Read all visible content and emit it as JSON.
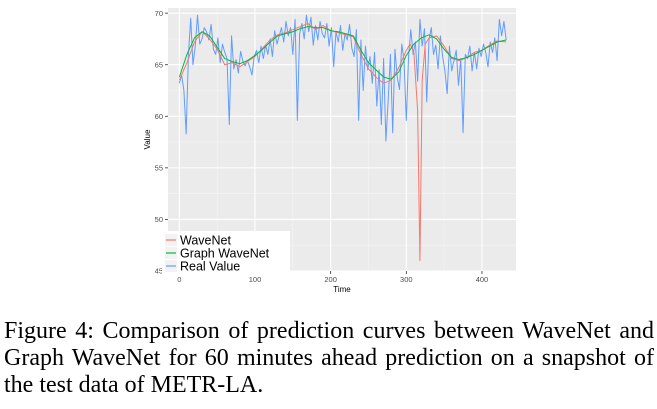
{
  "caption": "Figure 4: Comparison of prediction curves between WaveNet and Graph WaveNet for 60 minutes ahead prediction on a snapshot of the test data of METR-LA.",
  "chart_data": {
    "type": "line",
    "xlabel": "Time",
    "ylabel": "Value",
    "xlim": [
      -15,
      445
    ],
    "ylim": [
      45,
      70.5
    ],
    "x_ticks": [
      0,
      100,
      200,
      300,
      400
    ],
    "y_ticks": [
      45,
      50,
      55,
      60,
      65,
      70
    ],
    "grid": true,
    "legend_position": "bottom-left",
    "series": [
      {
        "name": "WaveNet",
        "color": "#f8766d",
        "x": [
          0,
          10,
          20,
          30,
          40,
          50,
          60,
          70,
          80,
          90,
          100,
          110,
          120,
          130,
          140,
          150,
          160,
          170,
          180,
          190,
          200,
          210,
          220,
          230,
          240,
          250,
          260,
          270,
          280,
          290,
          300,
          305,
          310,
          315,
          318,
          321,
          325,
          330,
          340,
          350,
          360,
          370,
          380,
          390,
          400,
          410,
          420,
          432
        ],
        "values": [
          63.5,
          65.2,
          67.2,
          68.2,
          67.5,
          66.5,
          65.0,
          65.2,
          64.8,
          65.3,
          65.8,
          66.6,
          67.4,
          67.9,
          68.1,
          68.4,
          68.7,
          69.0,
          68.4,
          68.8,
          68.3,
          68.1,
          67.9,
          67.7,
          66.0,
          64.6,
          63.8,
          63.2,
          63.5,
          64.7,
          66.4,
          67.0,
          66.2,
          60.5,
          46.0,
          63.5,
          67.0,
          67.6,
          67.8,
          66.8,
          65.6,
          65.4,
          65.7,
          66.2,
          66.4,
          66.9,
          67.3,
          67.2
        ]
      },
      {
        "name": "Graph WaveNet",
        "color": "#00ba38",
        "x": [
          0,
          10,
          20,
          30,
          40,
          50,
          60,
          70,
          80,
          90,
          100,
          110,
          120,
          130,
          140,
          150,
          160,
          170,
          180,
          190,
          200,
          210,
          220,
          230,
          240,
          250,
          260,
          270,
          280,
          290,
          300,
          310,
          320,
          330,
          340,
          350,
          360,
          370,
          380,
          390,
          400,
          410,
          420,
          432
        ],
        "values": [
          63.8,
          66.0,
          67.6,
          68.2,
          67.8,
          66.7,
          65.6,
          65.3,
          65.1,
          65.4,
          65.9,
          66.5,
          67.2,
          67.8,
          68.0,
          68.2,
          68.5,
          68.7,
          68.6,
          68.6,
          68.3,
          68.2,
          68.0,
          67.8,
          66.4,
          65.2,
          64.5,
          63.8,
          63.6,
          64.3,
          65.9,
          67.0,
          67.6,
          67.9,
          67.5,
          66.5,
          65.7,
          65.5,
          65.7,
          66.0,
          66.4,
          66.8,
          67.2,
          67.4
        ]
      },
      {
        "name": "Real Value",
        "color": "#619cff",
        "x": [
          0,
          3,
          6,
          9,
          12,
          15,
          18,
          21,
          24,
          27,
          30,
          33,
          36,
          39,
          42,
          45,
          48,
          51,
          54,
          57,
          60,
          63,
          66,
          69,
          72,
          75,
          78,
          81,
          84,
          87,
          90,
          93,
          96,
          99,
          102,
          105,
          108,
          111,
          114,
          117,
          120,
          123,
          126,
          129,
          132,
          135,
          138,
          141,
          144,
          147,
          150,
          153,
          156,
          159,
          162,
          165,
          168,
          171,
          174,
          177,
          180,
          183,
          186,
          189,
          192,
          195,
          198,
          201,
          204,
          207,
          210,
          213,
          216,
          219,
          222,
          225,
          228,
          231,
          234,
          237,
          240,
          243,
          246,
          249,
          252,
          255,
          258,
          261,
          264,
          267,
          270,
          273,
          276,
          279,
          282,
          285,
          288,
          291,
          294,
          297,
          300,
          303,
          306,
          309,
          312,
          315,
          318,
          321,
          324,
          327,
          330,
          333,
          336,
          339,
          342,
          345,
          348,
          351,
          354,
          357,
          360,
          363,
          366,
          369,
          372,
          375,
          378,
          381,
          384,
          387,
          390,
          393,
          396,
          399,
          402,
          405,
          408,
          411,
          414,
          417,
          420,
          423,
          426,
          429,
          432
        ],
        "values": [
          63.2,
          64.0,
          62.5,
          58.3,
          66.0,
          69.5,
          65.0,
          66.8,
          69.8,
          67.0,
          67.5,
          68.6,
          68.2,
          67.4,
          68.9,
          66.5,
          66.0,
          67.6,
          65.2,
          67.0,
          66.2,
          65.6,
          59.2,
          67.8,
          64.6,
          65.5,
          64.2,
          66.3,
          65.3,
          64.9,
          65.4,
          64.8,
          64.0,
          65.8,
          66.4,
          65.2,
          66.8,
          65.6,
          66.9,
          66.0,
          67.5,
          65.8,
          68.3,
          67.0,
          67.8,
          68.6,
          67.2,
          69.2,
          67.8,
          68.6,
          66.0,
          69.4,
          59.6,
          68.0,
          69.0,
          67.5,
          69.8,
          68.2,
          69.6,
          66.9,
          68.8,
          67.4,
          69.2,
          68.0,
          67.6,
          69.0,
          66.8,
          68.6,
          64.8,
          68.2,
          67.2,
          68.8,
          66.4,
          68.0,
          67.4,
          68.9,
          66.6,
          65.8,
          68.4,
          59.6,
          67.4,
          62.5,
          66.8,
          64.5,
          65.8,
          63.2,
          66.2,
          61.0,
          64.5,
          59.2,
          65.6,
          57.6,
          61.5,
          66.0,
          58.4,
          66.5,
          63.8,
          62.6,
          67.0,
          65.4,
          59.6,
          65.8,
          68.4,
          66.0,
          67.2,
          63.4,
          69.4,
          66.8,
          68.5,
          61.4,
          67.4,
          68.6,
          66.0,
          66.9,
          64.6,
          67.8,
          65.8,
          64.4,
          62.2,
          66.8,
          64.4,
          65.4,
          66.4,
          63.0,
          65.6,
          58.4,
          66.0,
          65.6,
          66.8,
          64.4,
          66.2,
          64.6,
          66.6,
          65.8,
          67.0,
          66.2,
          64.8,
          67.2,
          66.2,
          67.6,
          65.4,
          69.4,
          67.8,
          69.2,
          67.4
        ]
      }
    ]
  }
}
